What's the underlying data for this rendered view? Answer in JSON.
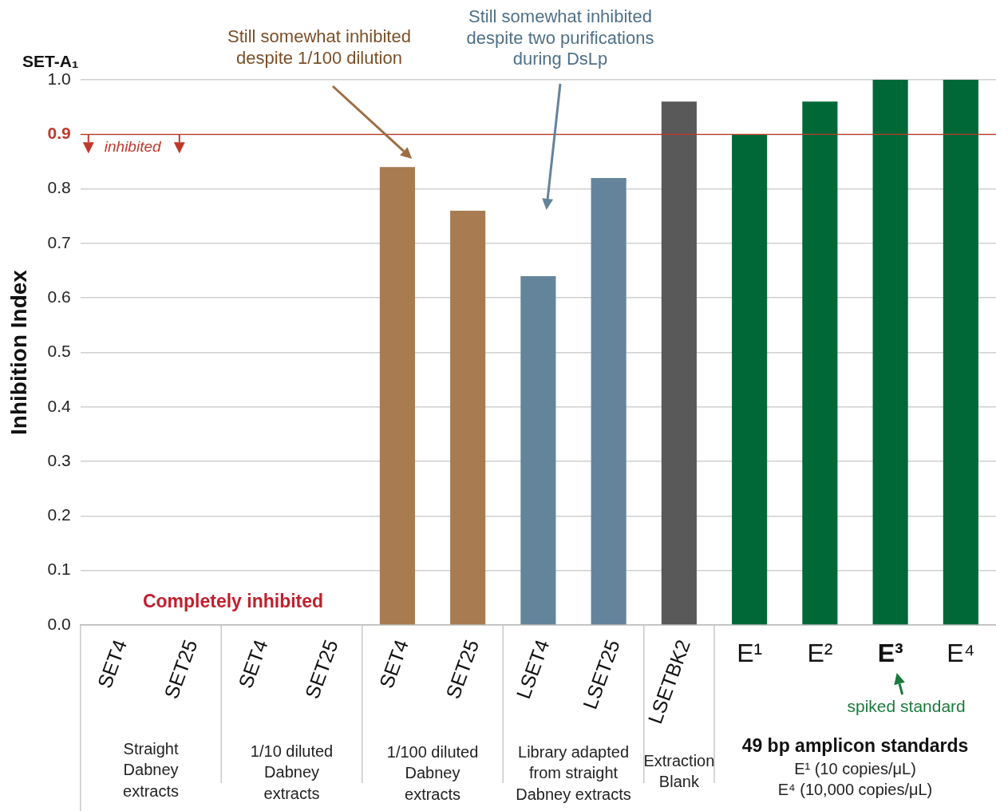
{
  "chart_data": {
    "type": "bar",
    "title": "SET-A₁",
    "ylabel": "Inhibition Index",
    "categories": [
      "SET4",
      "SET25",
      "SET4",
      "SET25",
      "SET4",
      "SET25",
      "LSET4",
      "LSET25",
      "LSETBK2",
      "E¹",
      "E²",
      "E³",
      "E⁴"
    ],
    "values": [
      0,
      0,
      0,
      0,
      0.84,
      0.76,
      0.64,
      0.82,
      0.96,
      0.9,
      0.96,
      1.0,
      1.0
    ],
    "colors": [
      "#a87b50",
      "#a87b50",
      "#a87b50",
      "#a87b50",
      "#a87b50",
      "#a87b50",
      "#64849b",
      "#64849b",
      "#595959",
      "#006837",
      "#006837",
      "#006837",
      "#006837"
    ],
    "ylim": [
      0,
      1.0
    ],
    "yticks": [
      {
        "value": 0,
        "label": "0.0"
      },
      0.1,
      0.2,
      0.3,
      0.4,
      0.5,
      0.6,
      0.7,
      0.8,
      0.9,
      {
        "value": 1,
        "label": "1.0"
      }
    ],
    "grid": "y",
    "ref_lines": [
      {
        "axis": "y",
        "value": 0.9,
        "label": "inhibited",
        "color": "#c0392b"
      }
    ],
    "annotations": [
      "Still somewhat inhibited\ndespite 1/100 dilution",
      "Still somewhat inhibited\ndespite two purifications\nduring DsLp",
      "Completely inhibited",
      "Straight\nDabney\nextracts",
      "1/10 diluted\nDabney\nextracts",
      "1/100 diluted\nDabney\nextracts",
      "Library adapted\nfrom straight\nDabney extracts",
      "Extraction\nBlank",
      "spiked standard",
      "49 bp amplicon standards",
      "E¹ (10 copies/μL)\nE⁴ (10,000 copies/μL)"
    ]
  }
}
